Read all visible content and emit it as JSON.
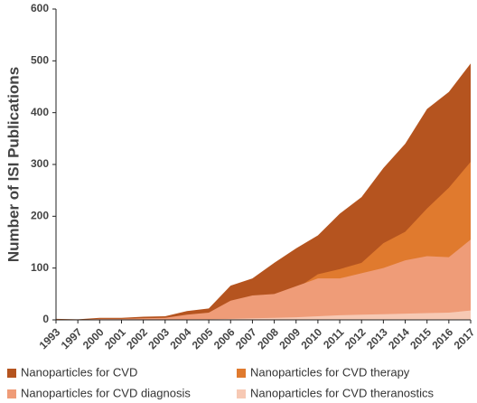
{
  "chart_data": {
    "type": "area",
    "y_label": "Number of ISI Publications",
    "categories": [
      "1993",
      "1997",
      "2000",
      "2001",
      "2002",
      "2003",
      "2004",
      "2005",
      "2006",
      "2007",
      "2008",
      "2009",
      "2010",
      "2011",
      "2012",
      "2013",
      "2014",
      "2015",
      "2016",
      "2017"
    ],
    "series": [
      {
        "name": "Nanoparticles for CVD",
        "color": "#b5541f",
        "values": [
          2,
          1,
          4,
          4,
          6,
          7,
          17,
          22,
          66,
          80,
          110,
          138,
          163,
          205,
          237,
          293,
          340,
          407,
          440,
          495
        ]
      },
      {
        "name": "Nanoparticles for CVD therapy",
        "color": "#e07a2e",
        "values": [
          1,
          0,
          2,
          2,
          3,
          4,
          8,
          12,
          30,
          40,
          45,
          60,
          88,
          98,
          110,
          148,
          170,
          215,
          255,
          305
        ]
      },
      {
        "name": "Nanoparticles for CVD diagnosis",
        "color": "#ef9c78",
        "values": [
          0,
          0,
          2,
          2,
          3,
          4,
          10,
          14,
          37,
          47,
          50,
          65,
          80,
          80,
          90,
          100,
          115,
          123,
          121,
          155
        ]
      },
      {
        "name": "Nanoparticles for CVD theranostics",
        "color": "#f7c9b4",
        "values": [
          0,
          0,
          0,
          0,
          0,
          0,
          1,
          1,
          2,
          3,
          4,
          5,
          7,
          9,
          10,
          11,
          12,
          13,
          14,
          18
        ]
      }
    ],
    "ylim": [
      0,
      600
    ],
    "yticks": [
      0,
      100,
      200,
      300,
      400,
      500,
      600
    ],
    "grid": false,
    "legend": "bottom"
  }
}
